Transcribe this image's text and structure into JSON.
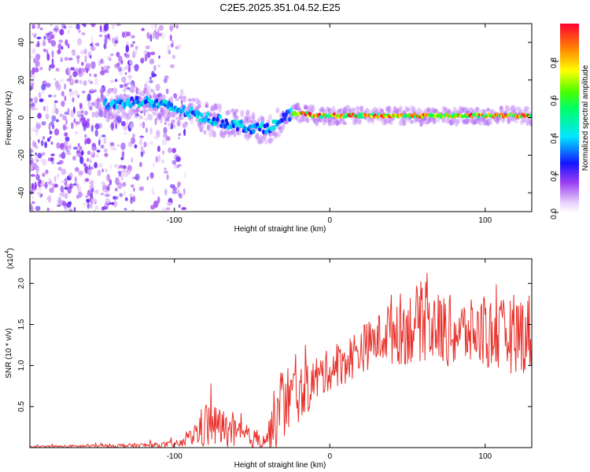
{
  "title": "C2E5.2025.351.04.52.E25",
  "chart_data": [
    {
      "type": "heatmap",
      "title": "C2E5.2025.351.04.52.E25",
      "xlabel": "Height of straight line (km)",
      "ylabel": "Frequency (Hz)",
      "xlim": [
        -193,
        130
      ],
      "ylim": [
        -50,
        50
      ],
      "xticks": [
        -100,
        0,
        100
      ],
      "xtick_labels": [
        "-100",
        "0",
        "100"
      ],
      "yticks": [
        -40,
        -20,
        0,
        20,
        40
      ],
      "ytick_labels": [
        "-40",
        "-20",
        "0",
        "20",
        "40"
      ],
      "colorbar": {
        "label": "Normalized spectral amplitude",
        "range": [
          0,
          1
        ],
        "ticks": [
          0.0,
          0.2,
          0.4,
          0.6,
          0.8
        ],
        "tick_labels": [
          "0.0",
          "0.2",
          "0.4",
          "0.6",
          "0.8"
        ]
      },
      "ridge": {
        "description_points_km": [
          -140,
          -120,
          -100,
          -80,
          -60,
          -45,
          -35,
          -25,
          -20,
          -15,
          -10,
          0,
          20,
          40,
          60,
          80,
          100,
          120,
          130
        ],
        "frequency_hz": [
          7,
          9,
          5,
          0,
          -4,
          -6,
          -4,
          2,
          2,
          2,
          1,
          1,
          1,
          1,
          1,
          1,
          1,
          1,
          1
        ]
      }
    },
    {
      "type": "line",
      "xlabel": "Height of straight line (km)",
      "ylabel": "SNR (10 * v/v)",
      "y_scale_label": "(x10",
      "y_scale_exp": "4",
      "y_scale_close": ")",
      "xlim": [
        -193,
        130
      ],
      "ylim": [
        0,
        2.3
      ],
      "xticks": [
        -100,
        0,
        100
      ],
      "xtick_labels": [
        "-100",
        "0",
        "100"
      ],
      "yticks": [
        0.5,
        1.0,
        1.5,
        2.0
      ],
      "ytick_labels": [
        "0.5",
        "1.0",
        "1.5",
        "2.0"
      ],
      "series": [
        {
          "name": "SNR",
          "color": "#e8302a",
          "envelope_x": [
            -193,
            -150,
            -110,
            -95,
            -90,
            -80,
            -70,
            -60,
            -50,
            -40,
            -35,
            -30,
            -25,
            -20,
            -15,
            -10,
            0,
            10,
            20,
            30,
            35,
            40,
            50,
            60,
            70,
            80,
            90,
            100,
            110,
            120,
            130
          ],
          "envelope_mean": [
            0.01,
            0.02,
            0.03,
            0.05,
            0.12,
            0.28,
            0.25,
            0.15,
            0.1,
            0.12,
            0.35,
            0.55,
            0.62,
            0.65,
            0.7,
            0.82,
            0.95,
            1.05,
            1.2,
            1.3,
            1.38,
            1.45,
            1.45,
            1.55,
            1.45,
            1.4,
            1.4,
            1.4,
            1.35,
            1.4,
            1.4
          ],
          "envelope_spread": [
            0.01,
            0.02,
            0.03,
            0.05,
            0.1,
            0.3,
            0.25,
            0.18,
            0.12,
            0.15,
            0.45,
            0.5,
            0.4,
            0.35,
            0.3,
            0.3,
            0.25,
            0.28,
            0.3,
            0.3,
            0.35,
            0.45,
            0.45,
            0.5,
            0.45,
            0.45,
            0.4,
            0.45,
            0.45,
            0.5,
            0.5
          ]
        }
      ]
    }
  ]
}
